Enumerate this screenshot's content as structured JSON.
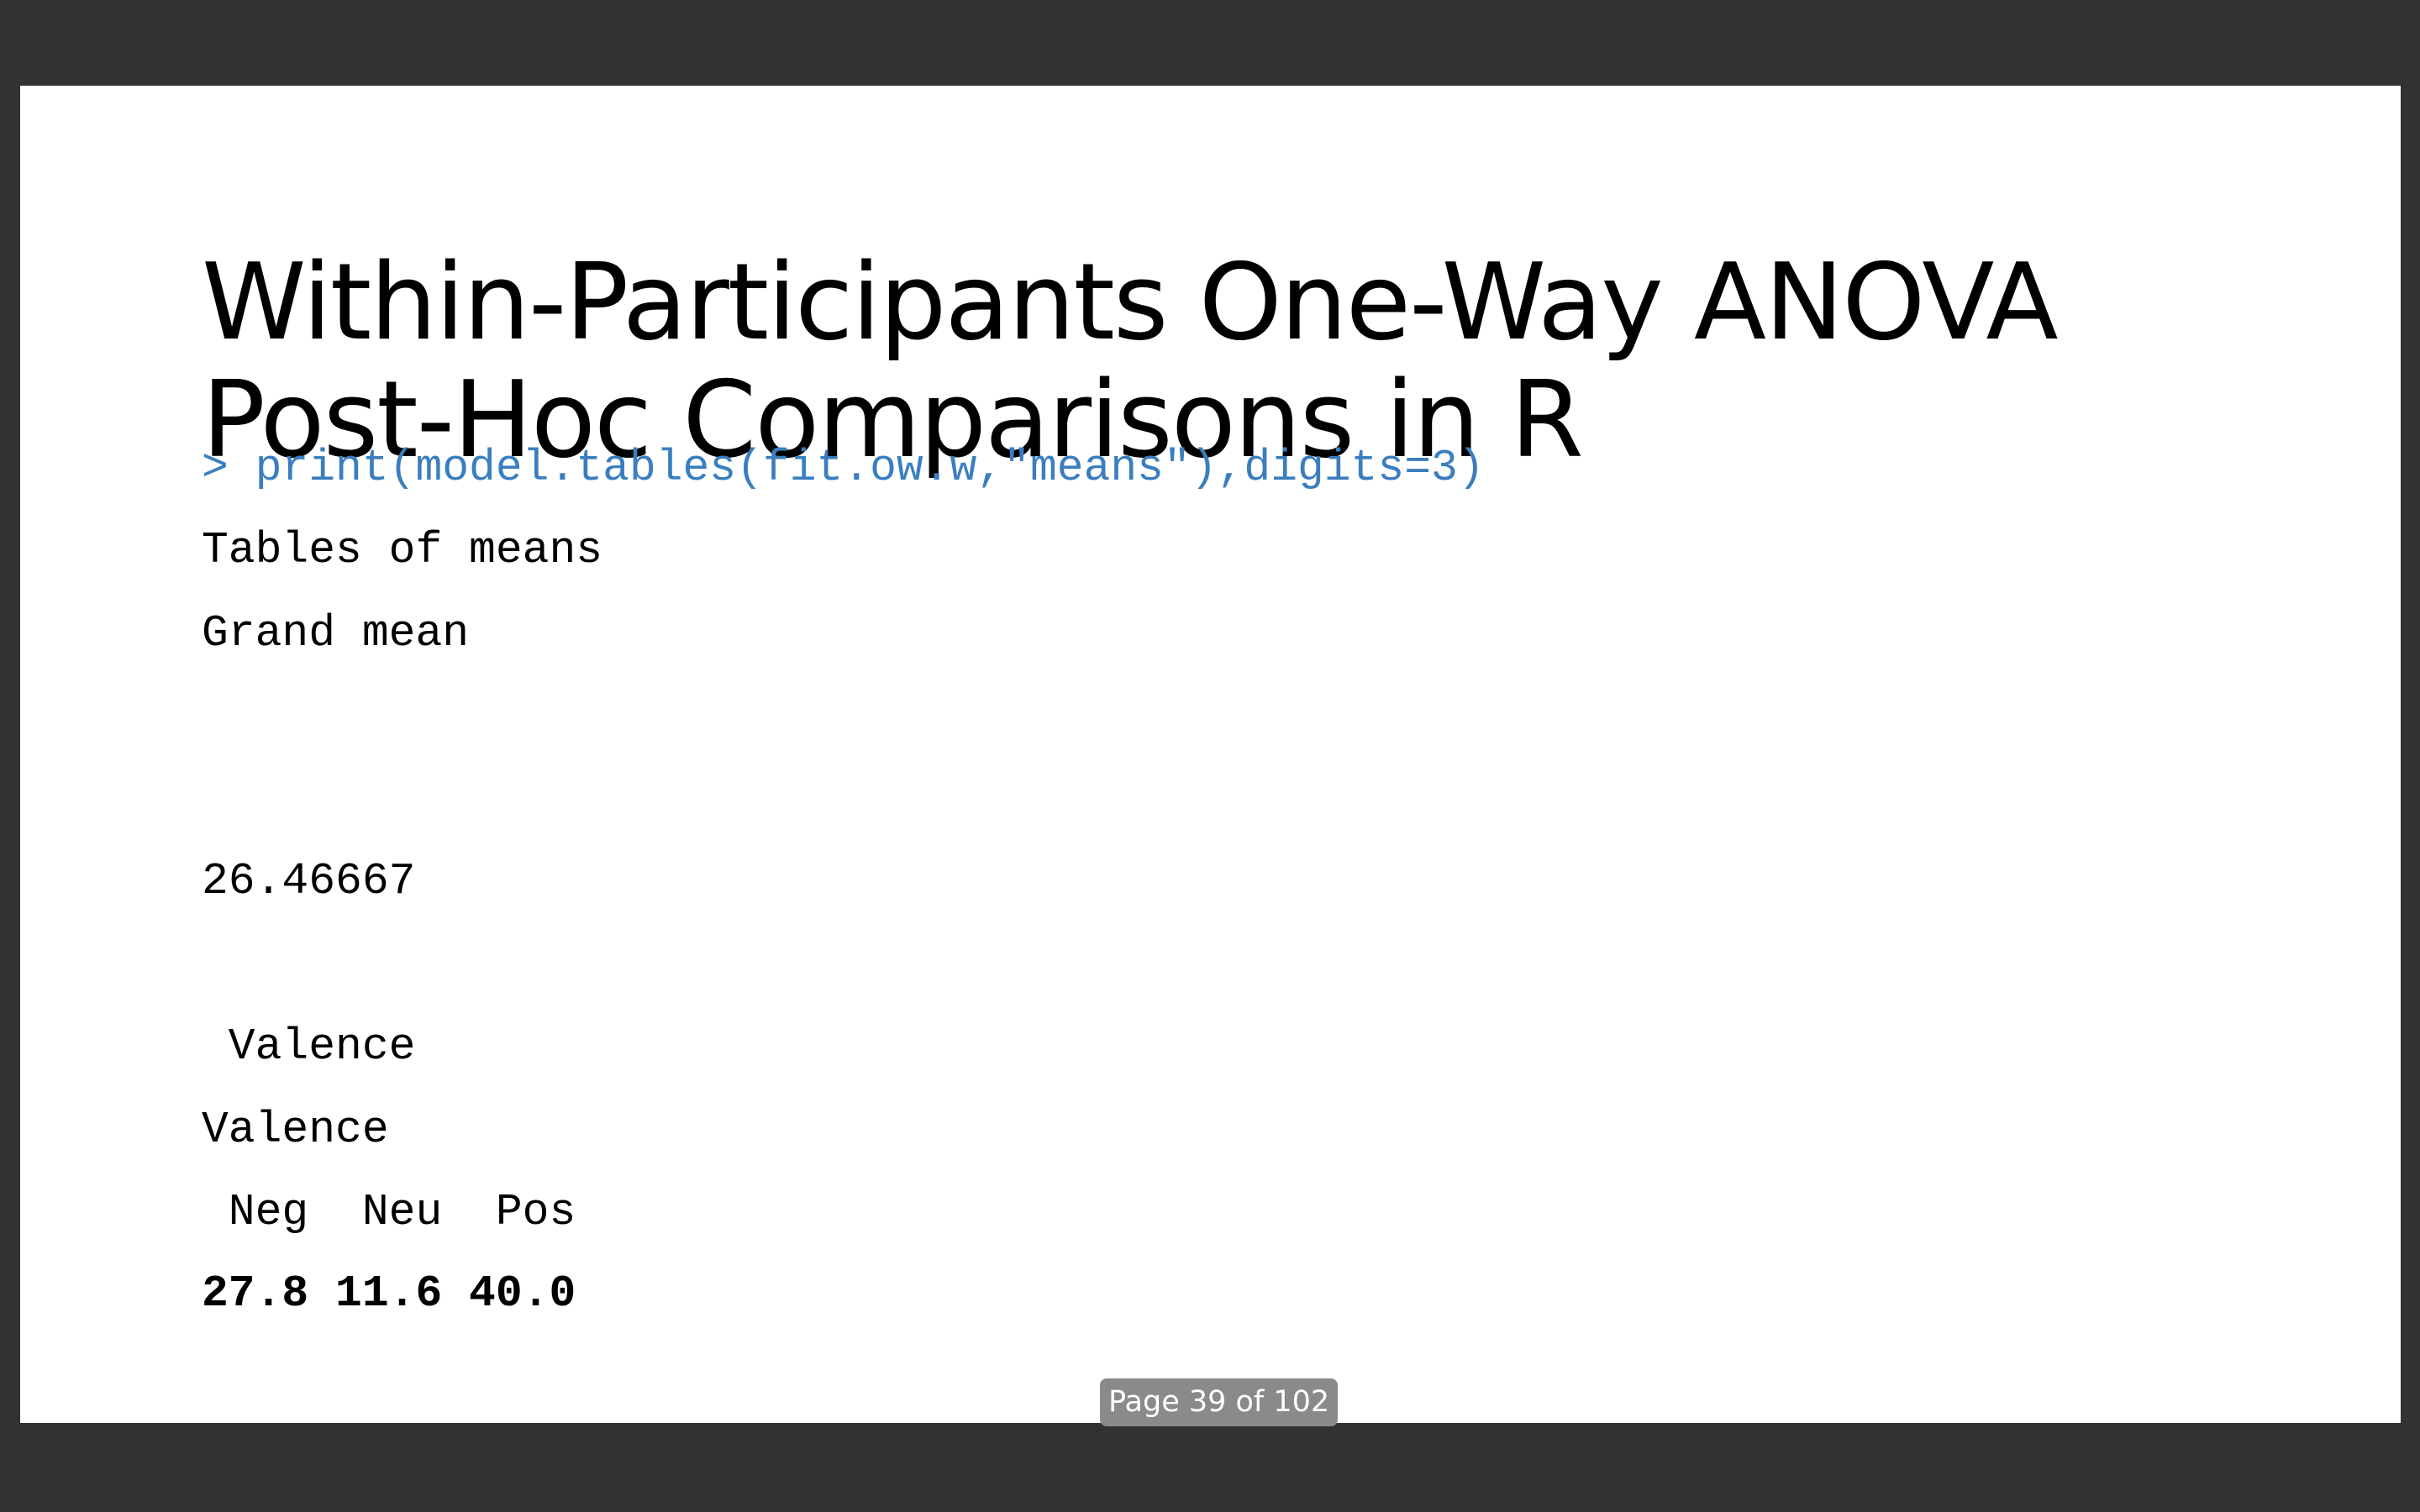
{
  "slide": {
    "title_line_1": "Within-Participants One-Way ANOVA",
    "title_line_2": "Post-Hoc Comparisons in R",
    "command": "> print(model.tables(fit.ow.w,\"means\"),digits=3)",
    "output": {
      "tables_heading": "Tables of means",
      "grand_mean_label": "Grand mean",
      "grand_mean_value": "26.46667",
      "factor_header": " Valence",
      "factor_name": "Valence",
      "level_labels": " Neg  Neu  Pos",
      "level_means": "27.8 11.6 40.0"
    }
  },
  "viewer": {
    "page_indicator": "Page 39 of 102"
  },
  "colors": {
    "background": "#323232",
    "slide": "#ffffff",
    "command_text": "#3a7ebf",
    "page_indicator_bg": "#8a8a8a"
  }
}
